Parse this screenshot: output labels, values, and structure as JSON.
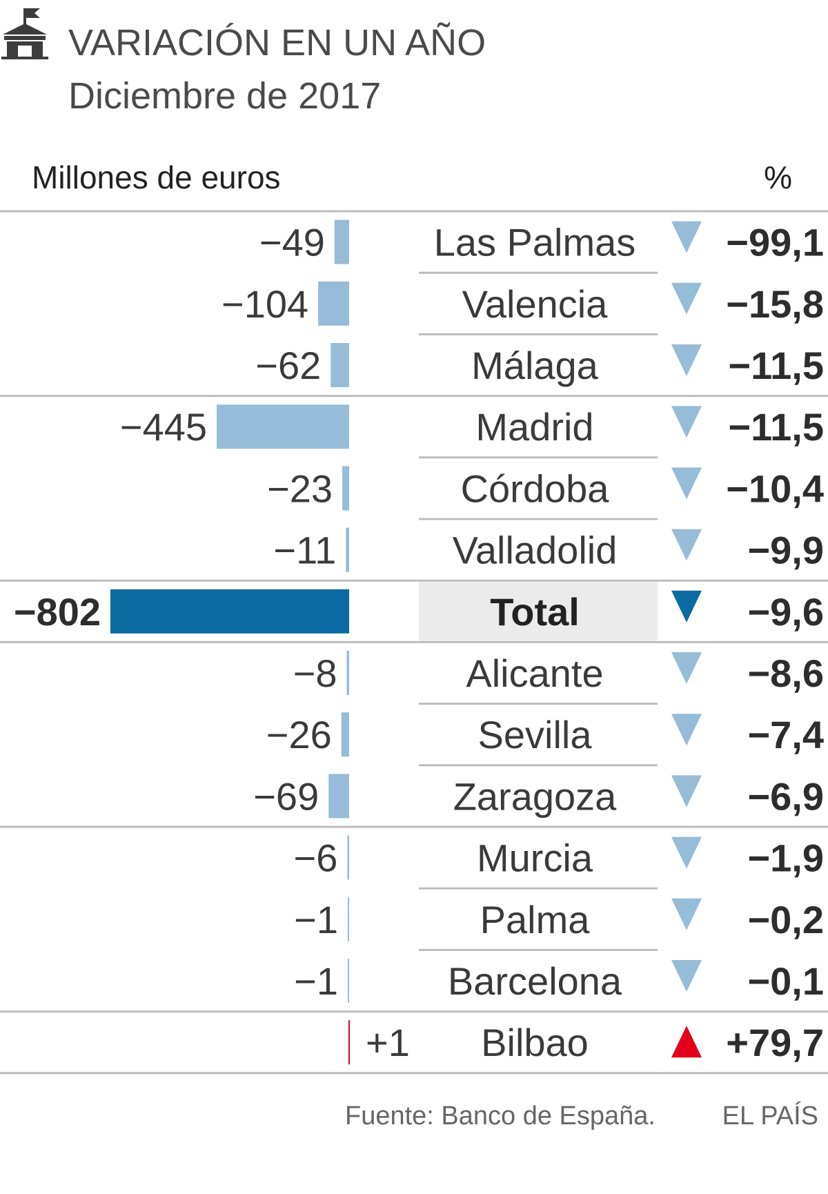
{
  "header": {
    "title": "VARIACIÓN EN UN AÑO",
    "subtitle": "Diciembre de 2017",
    "icon": "bank-building-icon"
  },
  "chart_data": {
    "type": "bar",
    "orientation": "horizontal",
    "left_label": "Millones de euros",
    "right_label": "%",
    "categories": [
      "Las Palmas",
      "Valencia",
      "Málaga",
      "Madrid",
      "Córdoba",
      "Valladolid",
      "Total",
      "Alicante",
      "Sevilla",
      "Zaragoza",
      "Murcia",
      "Palma",
      "Barcelona",
      "Bilbao"
    ],
    "value_labels": [
      "−49",
      "−104",
      "−62",
      "−445",
      "−23",
      "−11",
      "−802",
      "−8",
      "−26",
      "−69",
      "−6",
      "−1",
      "−1",
      "+1"
    ],
    "values": [
      -49,
      -104,
      -62,
      -445,
      -23,
      -11,
      -802,
      -8,
      -26,
      -69,
      -6,
      -1,
      -1,
      1
    ],
    "pct_labels": [
      "−99,1",
      "−15,8",
      "−11,5",
      "−11,5",
      "−10,4",
      "−9,9",
      "−9,6",
      "−8,6",
      "−7,4",
      "−6,9",
      "−1,9",
      "−0,2",
      "−0,1",
      "+79,7"
    ],
    "pct_values": [
      -99.1,
      -15.8,
      -11.5,
      -11.5,
      -10.4,
      -9.9,
      -9.6,
      -8.6,
      -7.4,
      -6.9,
      -1.9,
      -0.2,
      -0.1,
      79.7
    ],
    "highlight": "Total",
    "colors": {
      "bar": "#97bcd7",
      "bar_total": "#0a6aa1",
      "bar_positive": "#e2001a",
      "arrow_down": "#97bcd7",
      "arrow_down_total": "#0a6aa1",
      "arrow_up": "#e2001a",
      "total_bg": "#ebebeb",
      "rule": "#bdbdbd"
    }
  },
  "footer": {
    "source": "Fuente: Banco de España.",
    "brand": "EL PAÍS"
  }
}
